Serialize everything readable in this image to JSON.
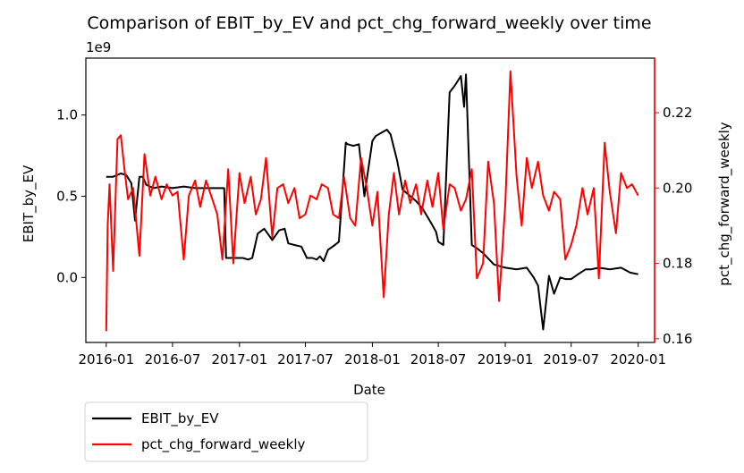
{
  "chart_data": {
    "type": "line",
    "title": "Comparison of EBIT_by_EV and pct_chg_forward_weekly over time",
    "xlabel": "Date",
    "ylabel": "EBIT_by_EV",
    "ylabel_right": "pct_chg_forward_weekly",
    "y_offset_text": "1e9",
    "x_range": [
      "2015-11-06",
      "2020-02-15"
    ],
    "x_ticks": [
      "2016-01",
      "2016-07",
      "2017-01",
      "2017-07",
      "2018-01",
      "2018-07",
      "2019-01",
      "2019-07",
      "2020-01"
    ],
    "ylim_left": [
      -0.4,
      1.35
    ],
    "yticks_left": [
      "0.0",
      "0.5",
      "1.0"
    ],
    "ylim_right": [
      0.159,
      0.2345
    ],
    "yticks_right": [
      "0.16",
      "0.18",
      "0.20",
      "0.22"
    ],
    "right_axis_color": "#ff0000",
    "legend": {
      "position": "below-left",
      "entries": [
        "EBIT_by_EV",
        "pct_chg_forward_weekly"
      ]
    },
    "series": [
      {
        "name": "EBIT_by_EV",
        "axis": "left",
        "color": "#000000",
        "x": [
          "2016-01-01",
          "2016-01-20",
          "2016-02-10",
          "2016-02-25",
          "2016-03-10",
          "2016-03-20",
          "2016-04-01",
          "2016-04-10",
          "2016-04-20",
          "2016-05-10",
          "2016-06-01",
          "2016-07-01",
          "2016-08-01",
          "2016-09-01",
          "2016-10-01",
          "2016-11-01",
          "2016-11-20",
          "2016-11-25",
          "2016-12-15",
          "2017-01-10",
          "2017-01-25",
          "2017-02-05",
          "2017-02-20",
          "2017-03-10",
          "2017-04-01",
          "2017-04-20",
          "2017-05-05",
          "2017-05-15",
          "2017-06-01",
          "2017-06-20",
          "2017-07-05",
          "2017-07-20",
          "2017-08-01",
          "2017-08-10",
          "2017-08-20",
          "2017-09-01",
          "2017-09-20",
          "2017-10-01",
          "2017-10-20",
          "2017-10-25",
          "2017-11-10",
          "2017-11-25",
          "2017-12-10",
          "2018-01-01",
          "2018-01-10",
          "2018-01-25",
          "2018-02-10",
          "2018-02-20",
          "2018-03-10",
          "2018-03-25",
          "2018-04-10",
          "2018-05-01",
          "2018-05-20",
          "2018-06-10",
          "2018-06-25",
          "2018-07-01",
          "2018-07-15",
          "2018-08-01",
          "2018-08-15",
          "2018-09-01",
          "2018-09-10",
          "2018-09-15",
          "2018-10-01",
          "2018-10-15",
          "2018-11-01",
          "2018-12-01",
          "2019-01-01",
          "2019-02-01",
          "2019-03-01",
          "2019-03-20",
          "2019-04-01",
          "2019-04-15",
          "2019-05-01",
          "2019-05-15",
          "2019-06-01",
          "2019-06-15",
          "2019-07-01",
          "2019-07-20",
          "2019-08-10",
          "2019-08-25",
          "2019-09-15",
          "2019-10-15",
          "2019-11-15",
          "2019-12-10",
          "2020-01-01"
        ],
        "values": [
          0.62,
          0.62,
          0.64,
          0.63,
          0.58,
          0.35,
          0.62,
          0.62,
          0.57,
          0.55,
          0.56,
          0.55,
          0.56,
          0.55,
          0.55,
          0.55,
          0.55,
          0.12,
          0.12,
          0.12,
          0.11,
          0.12,
          0.27,
          0.3,
          0.23,
          0.29,
          0.3,
          0.21,
          0.2,
          0.19,
          0.12,
          0.12,
          0.11,
          0.13,
          0.1,
          0.17,
          0.2,
          0.22,
          0.83,
          0.82,
          0.81,
          0.82,
          0.5,
          0.84,
          0.87,
          0.89,
          0.91,
          0.88,
          0.72,
          0.54,
          0.51,
          0.47,
          0.42,
          0.34,
          0.28,
          0.22,
          0.2,
          1.14,
          1.18,
          1.24,
          1.05,
          1.25,
          0.2,
          0.18,
          0.15,
          0.08,
          0.06,
          0.05,
          0.06,
          0.0,
          -0.05,
          -0.32,
          0.01,
          -0.1,
          0.0,
          -0.01,
          -0.01,
          0.02,
          0.05,
          0.05,
          0.06,
          0.05,
          0.06,
          0.03,
          0.02
        ]
      },
      {
        "name": "pct_chg_forward_weekly",
        "axis": "right",
        "color": "#ff0000",
        "x": [
          "2016-01-01",
          "2016-01-05",
          "2016-01-10",
          "2016-01-20",
          "2016-02-01",
          "2016-02-10",
          "2016-02-20",
          "2016-03-01",
          "2016-03-15",
          "2016-04-01",
          "2016-04-15",
          "2016-05-01",
          "2016-05-15",
          "2016-06-01",
          "2016-06-15",
          "2016-07-01",
          "2016-07-15",
          "2016-08-01",
          "2016-08-15",
          "2016-09-01",
          "2016-09-15",
          "2016-10-01",
          "2016-10-15",
          "2016-11-01",
          "2016-11-15",
          "2016-12-01",
          "2016-12-15",
          "2017-01-01",
          "2017-01-15",
          "2017-02-01",
          "2017-02-15",
          "2017-03-01",
          "2017-03-15",
          "2017-04-01",
          "2017-04-15",
          "2017-05-01",
          "2017-05-15",
          "2017-06-01",
          "2017-06-15",
          "2017-07-01",
          "2017-07-15",
          "2017-08-01",
          "2017-08-15",
          "2017-09-01",
          "2017-09-15",
          "2017-10-01",
          "2017-10-15",
          "2017-11-01",
          "2017-11-15",
          "2017-12-01",
          "2017-12-15",
          "2018-01-01",
          "2018-01-15",
          "2018-02-01",
          "2018-02-15",
          "2018-03-01",
          "2018-03-15",
          "2018-04-01",
          "2018-04-15",
          "2018-05-01",
          "2018-05-15",
          "2018-06-01",
          "2018-06-15",
          "2018-07-01",
          "2018-07-15",
          "2018-08-01",
          "2018-08-15",
          "2018-09-01",
          "2018-09-15",
          "2018-10-01",
          "2018-10-15",
          "2018-11-01",
          "2018-11-15",
          "2018-12-01",
          "2018-12-15",
          "2019-01-01",
          "2019-01-15",
          "2019-02-01",
          "2019-02-15",
          "2019-03-01",
          "2019-03-15",
          "2019-04-01",
          "2019-04-15",
          "2019-05-01",
          "2019-05-15",
          "2019-06-01",
          "2019-06-15",
          "2019-07-01",
          "2019-07-15",
          "2019-08-01",
          "2019-08-15",
          "2019-09-01",
          "2019-09-15",
          "2019-10-01",
          "2019-10-15",
          "2019-11-01",
          "2019-11-15",
          "2019-12-01",
          "2019-12-15",
          "2020-01-01"
        ],
        "values": [
          0.162,
          0.19,
          0.201,
          0.178,
          0.213,
          0.214,
          0.205,
          0.197,
          0.2,
          0.182,
          0.209,
          0.198,
          0.203,
          0.197,
          0.201,
          0.198,
          0.199,
          0.181,
          0.198,
          0.202,
          0.195,
          0.202,
          0.198,
          0.193,
          0.181,
          0.205,
          0.18,
          0.204,
          0.196,
          0.203,
          0.193,
          0.197,
          0.208,
          0.187,
          0.2,
          0.201,
          0.196,
          0.2,
          0.192,
          0.193,
          0.198,
          0.197,
          0.201,
          0.2,
          0.193,
          0.192,
          0.203,
          0.192,
          0.19,
          0.208,
          0.201,
          0.19,
          0.199,
          0.171,
          0.193,
          0.204,
          0.193,
          0.202,
          0.196,
          0.201,
          0.193,
          0.202,
          0.195,
          0.204,
          0.189,
          0.201,
          0.2,
          0.194,
          0.197,
          0.205,
          0.176,
          0.18,
          0.207,
          0.196,
          0.17,
          0.196,
          0.231,
          0.203,
          0.19,
          0.208,
          0.2,
          0.207,
          0.198,
          0.194,
          0.199,
          0.197,
          0.181,
          0.185,
          0.19,
          0.2,
          0.193,
          0.2,
          0.176,
          0.212,
          0.199,
          0.188,
          0.204,
          0.2,
          0.201,
          0.198
        ]
      }
    ]
  }
}
